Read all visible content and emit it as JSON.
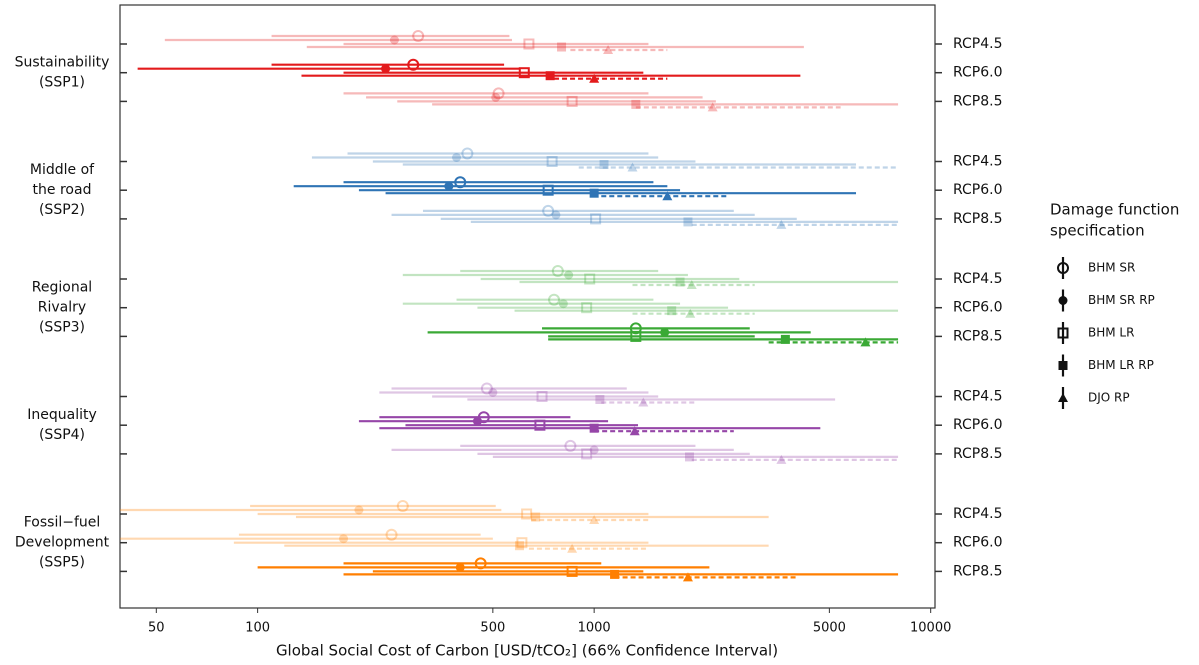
{
  "chart_data": {
    "type": "interval",
    "x_label": "Global Social Cost of Carbon [USD/tCO₂] (66% Confidence Interval)",
    "log_x": true,
    "xlim": [
      39,
      10300
    ],
    "xticks": [
      50,
      100,
      500,
      1000,
      5000,
      10000
    ],
    "legend_title": [
      "Damage function",
      "specification"
    ],
    "specifications": [
      {
        "name": "BHM SR",
        "marker": "circle-open",
        "dashed": false
      },
      {
        "name": "BHM SR RP",
        "marker": "circle",
        "dashed": false
      },
      {
        "name": "BHM LR",
        "marker": "square-open",
        "dashed": false
      },
      {
        "name": "BHM LR RP",
        "marker": "square",
        "dashed": false
      },
      {
        "name": "DJO RP",
        "marker": "triangle",
        "dashed": true
      }
    ],
    "groups": [
      {
        "label": [
          "Sustainability",
          "(SSP1)"
        ],
        "color": "#e31a1c",
        "highlight": "RCP6.0",
        "rows": [
          {
            "label": "RCP4.5",
            "estimates": [
              [
                300,
                110,
                560
              ],
              [
                255,
                53,
                570
              ],
              [
                640,
                180,
                1450
              ],
              [
                800,
                140,
                4200
              ],
              [
                1100,
                850,
                1650
              ]
            ]
          },
          {
            "label": "RCP6.0",
            "estimates": [
              [
                290,
                110,
                540
              ],
              [
                240,
                44,
                600
              ],
              [
                620,
                180,
                1400
              ],
              [
                740,
                135,
                4100
              ],
              [
                1000,
                760,
                1650
              ]
            ]
          },
          {
            "label": "RCP8.5",
            "estimates": [
              [
                520,
                180,
                1450
              ],
              [
                510,
                210,
                2100
              ],
              [
                860,
                260,
                2300
              ],
              [
                1330,
                330,
                8000
              ],
              [
                2250,
                1330,
                5400
              ]
            ]
          }
        ]
      },
      {
        "label": [
          "Middle of",
          "the road",
          "(SSP2)"
        ],
        "color": "#2f74b5",
        "highlight": "RCP6.0",
        "rows": [
          {
            "label": "RCP4.5",
            "estimates": [
              [
                420,
                185,
                1450
              ],
              [
                390,
                145,
                1550
              ],
              [
                750,
                220,
                2000
              ],
              [
                1070,
                270,
                6000
              ],
              [
                1300,
                900,
                8000
              ]
            ]
          },
          {
            "label": "RCP6.0",
            "estimates": [
              [
                400,
                180,
                1500
              ],
              [
                370,
                128,
                1650
              ],
              [
                730,
                200,
                1800
              ],
              [
                1000,
                240,
                6000
              ],
              [
                1650,
                1050,
                2500
              ]
            ]
          },
          {
            "label": "RCP8.5",
            "estimates": [
              [
                730,
                310,
                2600
              ],
              [
                770,
                250,
                3000
              ],
              [
                1010,
                350,
                4000
              ],
              [
                1900,
                430,
                8000
              ],
              [
                3600,
                1950,
                8000
              ]
            ]
          }
        ]
      },
      {
        "label": [
          "Regional",
          "Rivalry",
          "(SSP3)"
        ],
        "color": "#3aa935",
        "highlight": "RCP8.5",
        "rows": [
          {
            "label": "RCP4.5",
            "estimates": [
              [
                780,
                400,
                1550
              ],
              [
                840,
                270,
                1900
              ],
              [
                970,
                460,
                2700
              ],
              [
                1800,
                600,
                8000
              ],
              [
                1950,
                1300,
                3000
              ]
            ]
          },
          {
            "label": "RCP6.0",
            "estimates": [
              [
                760,
                390,
                1500
              ],
              [
                810,
                270,
                1800
              ],
              [
                950,
                450,
                2500
              ],
              [
                1700,
                580,
                8000
              ],
              [
                1930,
                1300,
                3000
              ]
            ]
          },
          {
            "label": "RCP8.5",
            "estimates": [
              [
                1330,
                700,
                2900
              ],
              [
                1620,
                320,
                4400
              ],
              [
                1330,
                730,
                3000
              ],
              [
                3700,
                730,
                8000
              ],
              [
                6400,
                3300,
                8000
              ]
            ]
          }
        ]
      },
      {
        "label": [
          "Inequality",
          "(SSP4)"
        ],
        "color": "#9646a8",
        "highlight": "RCP6.0",
        "rows": [
          {
            "label": "RCP4.5",
            "estimates": [
              [
                480,
                250,
                1250
              ],
              [
                500,
                230,
                1450
              ],
              [
                700,
                330,
                1550
              ],
              [
                1040,
                420,
                5200
              ],
              [
                1400,
                1050,
                2000
              ]
            ]
          },
          {
            "label": "RCP6.0",
            "estimates": [
              [
                470,
                230,
                850
              ],
              [
                450,
                200,
                1100
              ],
              [
                690,
                275,
                1350
              ],
              [
                1000,
                230,
                4700
              ],
              [
                1320,
                1000,
                2600
              ]
            ]
          },
          {
            "label": "RCP8.5",
            "estimates": [
              [
                850,
                400,
                2000
              ],
              [
                1000,
                250,
                2600
              ],
              [
                950,
                450,
                2900
              ],
              [
                1920,
                500,
                8000
              ],
              [
                3600,
                1950,
                8000
              ]
            ]
          }
        ]
      },
      {
        "label": [
          "Fossil−fuel",
          "Development",
          "(SSP5)"
        ],
        "color": "#ff7f00",
        "highlight": "RCP8.5",
        "rows": [
          {
            "label": "RCP4.5",
            "estimates": [
              [
                270,
                95,
                510
              ],
              [
                200,
                39,
                530
              ],
              [
                630,
                100,
                1450
              ],
              [
                670,
                130,
                3300
              ],
              [
                1000,
                650,
                1450
              ]
            ]
          },
          {
            "label": "RCP6.0",
            "estimates": [
              [
                250,
                88,
                460
              ],
              [
                180,
                39,
                500
              ],
              [
                610,
                85,
                1450
              ],
              [
                600,
                120,
                3300
              ],
              [
                860,
                640,
                1450
              ]
            ]
          },
          {
            "label": "RCP8.5",
            "estimates": [
              [
                460,
                180,
                1050
              ],
              [
                400,
                100,
                2200
              ],
              [
                860,
                220,
                1400
              ],
              [
                1150,
                180,
                8000
              ],
              [
                1900,
                1150,
                4000
              ]
            ]
          }
        ]
      }
    ]
  }
}
